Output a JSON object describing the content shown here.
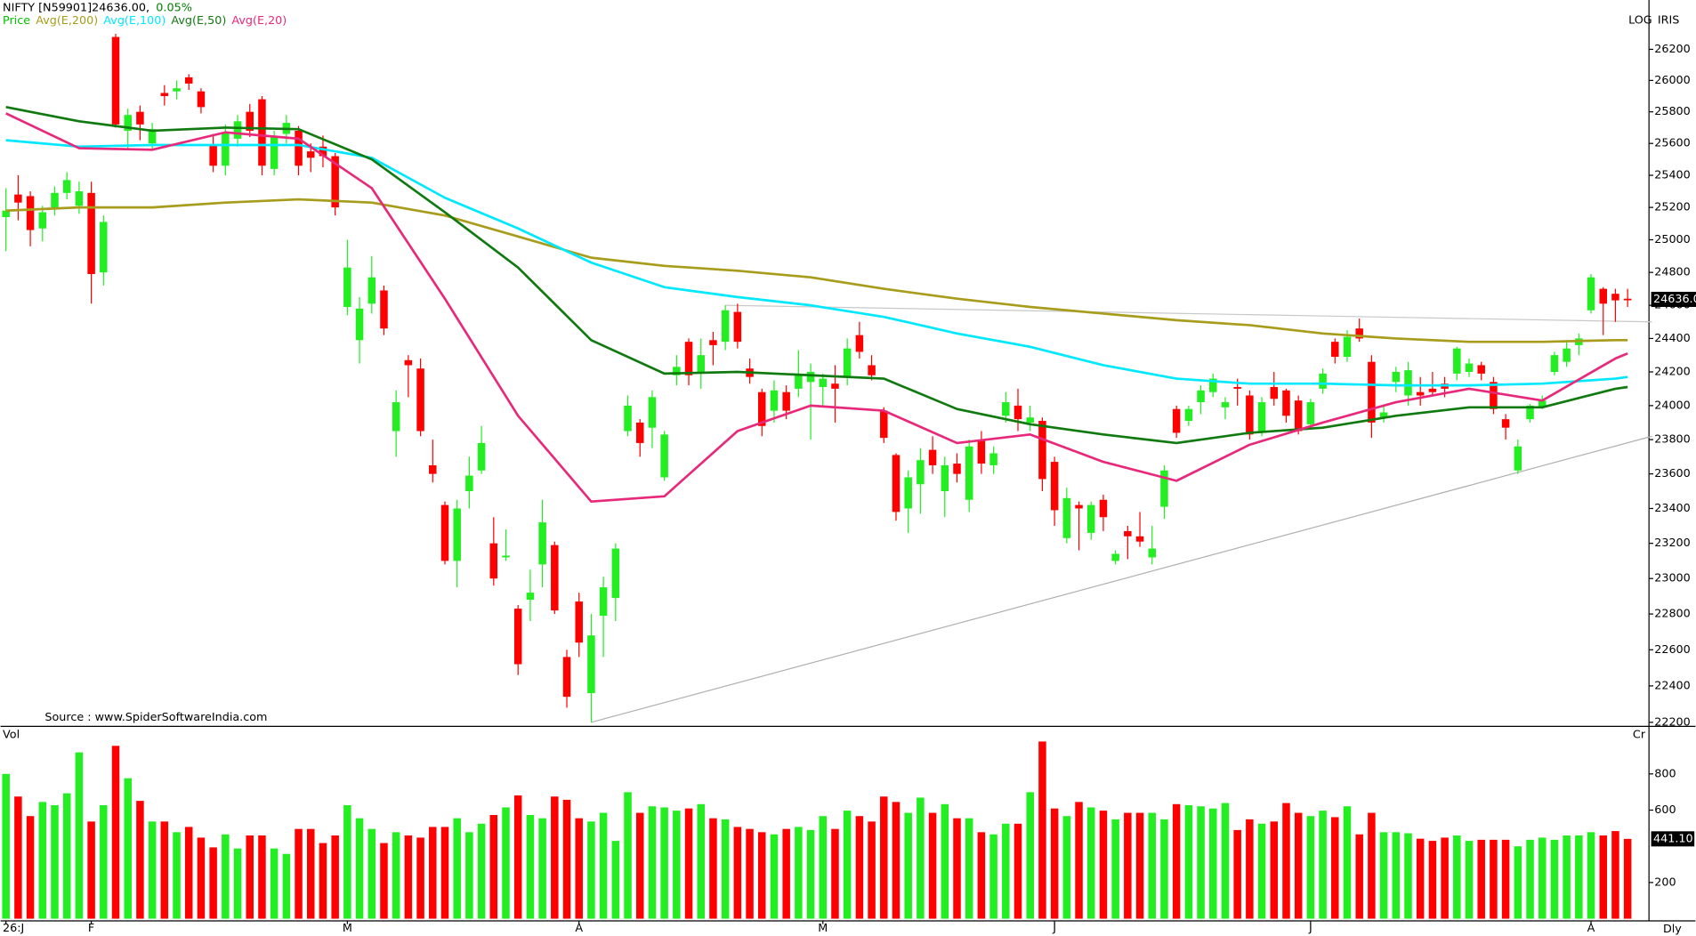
{
  "chart_data": {
    "type": "candlestick",
    "title": "NIFTY [N59901]24636.00,",
    "change": "0.05%",
    "scale_label": "LOG",
    "log_scale": true,
    "brand": "IRIS",
    "source": "Source : www.SpiderSoftwareIndia.com",
    "period": "Dly",
    "x_ticks": [
      {
        "value": 0,
        "label": "26:J"
      },
      {
        "value": 7,
        "label": "F"
      },
      {
        "value": 28,
        "label": "M"
      },
      {
        "value": 47,
        "label": "A"
      },
      {
        "value": 67,
        "label": "M"
      },
      {
        "value": 86,
        "label": "J"
      },
      {
        "value": 107,
        "label": "J"
      },
      {
        "value": 130,
        "label": "A"
      }
    ],
    "price": {
      "name": "Price",
      "color": "#00c000",
      "up_color": "#22ee22",
      "down_color": "#ff0000",
      "open": [
        25140,
        25280,
        25270,
        25070,
        25200,
        25290,
        25210,
        25290,
        24800,
        26280,
        25680,
        25800,
        25600,
        25920,
        25930,
        26020,
        25930,
        25590,
        25460,
        25630,
        25800,
        25880,
        25440,
        25660,
        25680,
        25550,
        25580,
        25520,
        24590,
        24390,
        24610,
        24690,
        23850,
        24270,
        24220,
        23650,
        23420,
        23100,
        23500,
        23620,
        23200,
        23120,
        22830,
        22880,
        23080,
        23190,
        22560,
        22870,
        22360,
        22790,
        22890,
        23850,
        23900,
        23870,
        23580,
        24180,
        24380,
        24200,
        24390,
        24380,
        24560,
        24220,
        24080,
        23970,
        24080,
        24100,
        24140,
        24110,
        24130,
        24170,
        24420,
        24240,
        23970,
        23710,
        23400,
        23540,
        23740,
        23500,
        23660,
        23450,
        23800,
        23650,
        23940,
        24000,
        23900,
        23910,
        23670,
        23230,
        23420,
        23260,
        23450,
        23100,
        23270,
        23240,
        23120,
        23410,
        23980,
        23910,
        24020,
        24080,
        23990,
        24110,
        24060,
        23850,
        24110,
        24090,
        24030,
        23890,
        24100,
        24380,
        24290,
        24460,
        24260,
        23930,
        24140,
        24060,
        24080,
        24100,
        24130,
        24190,
        24200,
        24240,
        24140,
        23920,
        23620,
        23920,
        23990,
        24200,
        24260,
        24360,
        24570,
        24700,
        24670,
        24640
      ],
      "high": [
        25320,
        25400,
        25300,
        25210,
        25330,
        25420,
        25360,
        25360,
        25150,
        26300,
        25820,
        25840,
        25730,
        25970,
        26000,
        26040,
        25950,
        25660,
        25720,
        25780,
        25850,
        25900,
        25680,
        25780,
        25710,
        25600,
        25650,
        25540,
        25000,
        24650,
        24900,
        24720,
        24090,
        24300,
        24280,
        23800,
        23440,
        23450,
        23700,
        23880,
        23350,
        23280,
        22850,
        23050,
        23450,
        23210,
        22600,
        22920,
        22800,
        23010,
        23200,
        24060,
        23920,
        24090,
        23850,
        24300,
        24400,
        24400,
        24440,
        24600,
        24610,
        24280,
        24100,
        24150,
        24120,
        24330,
        24250,
        24190,
        24240,
        24400,
        24500,
        24300,
        23990,
        23720,
        23620,
        23750,
        23820,
        23700,
        23720,
        23800,
        23850,
        23760,
        24080,
        24100,
        24000,
        23930,
        23700,
        23520,
        23440,
        23440,
        23480,
        23160,
        23300,
        23380,
        23300,
        23650,
        24000,
        24000,
        24120,
        24190,
        24050,
        24160,
        24090,
        24050,
        24200,
        24100,
        24060,
        24040,
        24220,
        24400,
        24450,
        24520,
        24300,
        24000,
        24230,
        24260,
        24170,
        24200,
        24170,
        24350,
        24280,
        24260,
        24170,
        23950,
        23800,
        24010,
        24060,
        24320,
        24380,
        24430,
        24790,
        24710,
        24700,
        24700
      ],
      "low": [
        24930,
        25120,
        24960,
        24990,
        25150,
        25250,
        25160,
        24610,
        24720,
        25700,
        25570,
        25620,
        25560,
        25840,
        25880,
        25940,
        25790,
        25420,
        25400,
        25580,
        25640,
        25400,
        25400,
        25600,
        25400,
        25420,
        25450,
        25150,
        24540,
        24250,
        24550,
        24420,
        23700,
        24050,
        23820,
        23550,
        23080,
        22950,
        23400,
        23600,
        22960,
        23100,
        22460,
        22760,
        22950,
        22800,
        22280,
        22560,
        22200,
        22560,
        22760,
        23820,
        23700,
        23750,
        23560,
        24120,
        24120,
        24100,
        24240,
        24330,
        24340,
        24130,
        23820,
        23900,
        23920,
        24050,
        23800,
        24000,
        23900,
        24120,
        24280,
        24150,
        23780,
        23330,
        23260,
        23370,
        23600,
        23350,
        23550,
        23380,
        23600,
        23600,
        23900,
        23850,
        23850,
        23500,
        23300,
        23200,
        23160,
        23220,
        23270,
        23080,
        23110,
        23180,
        23080,
        23340,
        23810,
        23880,
        23950,
        24050,
        23920,
        24000,
        23800,
        23820,
        24000,
        23900,
        23830,
        23860,
        24070,
        24250,
        24260,
        24380,
        23810,
        23900,
        24080,
        24000,
        24000,
        24060,
        24050,
        24150,
        24170,
        24150,
        23950,
        23800,
        23600,
        23900,
        23980,
        24180,
        24230,
        24300,
        24550,
        24420,
        24500,
        24590
      ],
      "close": [
        25180,
        25230,
        25060,
        25170,
        25290,
        25370,
        25300,
        24790,
        25110,
        25720,
        25780,
        25720,
        25690,
        25900,
        25950,
        25980,
        25830,
        25460,
        25670,
        25740,
        25680,
        25460,
        25640,
        25730,
        25460,
        25510,
        25520,
        25200,
        24830,
        24580,
        24770,
        24460,
        24020,
        24240,
        23850,
        23600,
        23100,
        23400,
        23590,
        23780,
        23000,
        23130,
        22520,
        22920,
        23320,
        22820,
        22340,
        22640,
        22680,
        22950,
        23170,
        24000,
        23780,
        24050,
        23830,
        24230,
        24180,
        24300,
        24360,
        24570,
        24380,
        24170,
        23880,
        24090,
        23970,
        24180,
        24200,
        24160,
        24100,
        24340,
        24320,
        24180,
        23810,
        23380,
        23580,
        23680,
        23650,
        23650,
        23600,
        23760,
        23660,
        23720,
        24020,
        23920,
        23930,
        23570,
        23390,
        23460,
        23400,
        23420,
        23350,
        23140,
        23240,
        23210,
        23170,
        23620,
        23840,
        23980,
        24090,
        24160,
        24020,
        24100,
        23830,
        24020,
        24040,
        23940,
        23850,
        24020,
        24190,
        24290,
        24410,
        24400,
        23900,
        23960,
        24200,
        24210,
        24060,
        24080,
        24100,
        24340,
        24250,
        24190,
        23980,
        23870,
        23760,
        24000,
        24030,
        24300,
        24340,
        24400,
        24770,
        24610,
        24630,
        24636
      ]
    },
    "indicators": [
      {
        "name": "Avg(E,200)",
        "color": "#a89c1c",
        "x": [
          0,
          6,
          12,
          18,
          24,
          30,
          36,
          42,
          48,
          54,
          60,
          66,
          72,
          78,
          84,
          90,
          96,
          102,
          108,
          114,
          120,
          126,
          132,
          133
        ],
        "values": [
          25180,
          25200,
          25200,
          25230,
          25250,
          25230,
          25150,
          25020,
          24890,
          24840,
          24810,
          24770,
          24700,
          24640,
          24590,
          24550,
          24510,
          24480,
          24430,
          24400,
          24380,
          24380,
          24390,
          24390
        ]
      },
      {
        "name": "Avg(E,100)",
        "color": "#00e8ff",
        "x": [
          0,
          6,
          12,
          18,
          24,
          30,
          36,
          42,
          48,
          54,
          60,
          66,
          72,
          78,
          84,
          90,
          96,
          102,
          108,
          114,
          120,
          126,
          132,
          133
        ],
        "values": [
          25620,
          25580,
          25590,
          25590,
          25590,
          25510,
          25260,
          25070,
          24860,
          24710,
          24650,
          24600,
          24530,
          24430,
          24350,
          24240,
          24160,
          24130,
          24130,
          24120,
          24120,
          24130,
          24160,
          24170
        ]
      },
      {
        "name": "Avg(E,50)",
        "color": "#107a10",
        "x": [
          0,
          6,
          12,
          18,
          24,
          30,
          36,
          42,
          48,
          54,
          60,
          66,
          72,
          78,
          84,
          90,
          96,
          102,
          108,
          114,
          120,
          126,
          132,
          133
        ],
        "values": [
          25830,
          25740,
          25680,
          25700,
          25690,
          25500,
          25170,
          24830,
          24390,
          24190,
          24200,
          24180,
          24160,
          23980,
          23890,
          23830,
          23780,
          23840,
          23870,
          23940,
          23990,
          23990,
          24100,
          24110
        ]
      },
      {
        "name": "Avg(E,20)",
        "color": "#e8287a",
        "x": [
          0,
          6,
          12,
          18,
          24,
          30,
          36,
          42,
          48,
          54,
          60,
          66,
          72,
          78,
          84,
          90,
          96,
          102,
          108,
          114,
          120,
          126,
          132,
          133
        ],
        "values": [
          25790,
          25570,
          25560,
          25670,
          25630,
          25320,
          24640,
          23940,
          23440,
          23470,
          23850,
          24000,
          23970,
          23780,
          23830,
          23670,
          23560,
          23770,
          23900,
          24020,
          24100,
          24030,
          24280,
          24310
        ]
      }
    ],
    "trendlines": [
      {
        "color": "#b0b0b0",
        "x": [
          48,
          135
        ],
        "values": [
          22200,
          23820
        ]
      },
      {
        "color": "#c8c8c8",
        "x": [
          59,
          135
        ],
        "values": [
          24600,
          24500
        ]
      }
    ],
    "ylim": [
      22190,
      26520
    ],
    "yticks": [
      22200,
      22400,
      22600,
      22800,
      23000,
      23200,
      23400,
      23600,
      23800,
      24000,
      24200,
      24400,
      24600,
      24800,
      25000,
      25200,
      25400,
      25600,
      25800,
      26000,
      26200
    ],
    "last_price": {
      "value": 24636,
      "label": "24636.0"
    },
    "volume": {
      "title": "Vol",
      "unit": "Cr",
      "ylim": [
        0,
        1045
      ],
      "yticks": [
        200,
        600,
        800
      ],
      "values": [
        800,
        675,
        567,
        645,
        627,
        693,
        919,
        537,
        627,
        955,
        776,
        651,
        537,
        537,
        478,
        507,
        448,
        394,
        466,
        388,
        460,
        460,
        388,
        358,
        496,
        496,
        418,
        460,
        627,
        555,
        496,
        418,
        478,
        460,
        448,
        507,
        507,
        555,
        478,
        525,
        573,
        615,
        681,
        573,
        555,
        675,
        657,
        555,
        537,
        585,
        430,
        699,
        585,
        621,
        615,
        597,
        609,
        633,
        555,
        549,
        507,
        496,
        478,
        466,
        496,
        507,
        490,
        567,
        496,
        597,
        567,
        537,
        675,
        645,
        585,
        669,
        585,
        633,
        555,
        555,
        478,
        466,
        525,
        525,
        699,
        979,
        609,
        567,
        645,
        615,
        597,
        549,
        585,
        585,
        585,
        549,
        633,
        627,
        621,
        609,
        639,
        490,
        549,
        525,
        537,
        639,
        585,
        567,
        597,
        561,
        621,
        466,
        585,
        478,
        478,
        472,
        442,
        430,
        448,
        460,
        430,
        436,
        436,
        436,
        400,
        436,
        448,
        436,
        460,
        460,
        478,
        460,
        484,
        441.1
      ],
      "last": {
        "value": 441.1,
        "label": "441.10"
      }
    }
  }
}
